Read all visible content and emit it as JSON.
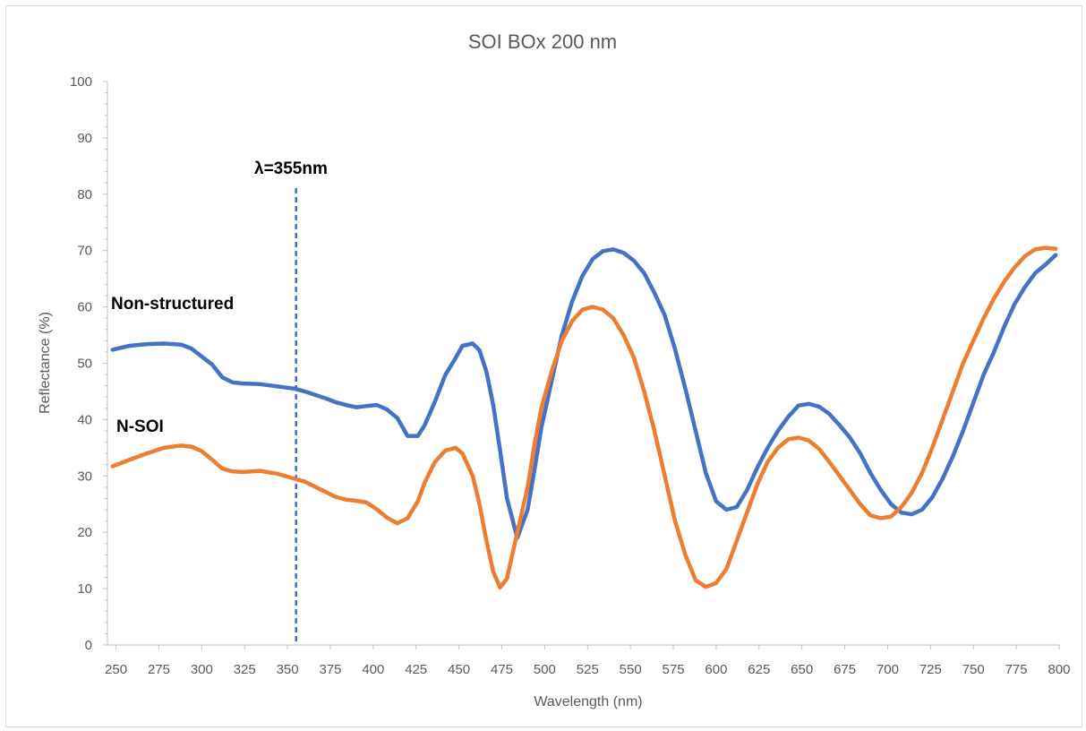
{
  "chart_data": {
    "type": "line",
    "title": "SOI BOx 200 nm",
    "xlabel": "Wavelength (nm)",
    "ylabel": "Reflectance (%)",
    "xlim": [
      245,
      800
    ],
    "ylim": [
      0,
      100
    ],
    "x_ticks": [
      "250",
      "275",
      "300",
      "325",
      "350",
      "375",
      "400",
      "425",
      "450",
      "475",
      "500",
      "525",
      "550",
      "575",
      "600",
      "625",
      "650",
      "675",
      "700",
      "725",
      "750",
      "775",
      "800"
    ],
    "y_ticks": [
      "0",
      "10",
      "20",
      "30",
      "40",
      "50",
      "60",
      "70",
      "80",
      "90",
      "100"
    ],
    "grid": false,
    "series": [
      {
        "name": "Non-structured",
        "color": "#4472c4",
        "x": [
          248,
          258,
          268,
          278,
          288,
          294,
          300,
          306,
          312,
          318,
          324,
          334,
          344,
          354,
          360,
          366,
          372,
          378,
          384,
          390,
          396,
          402,
          408,
          414,
          420,
          426,
          430,
          436,
          442,
          448,
          452,
          458,
          462,
          466,
          470,
          474,
          478,
          484,
          490,
          494,
          498,
          504,
          510,
          516,
          522,
          528,
          534,
          540,
          546,
          552,
          558,
          564,
          570,
          576,
          582,
          588,
          594,
          600,
          606,
          612,
          618,
          624,
          630,
          636,
          642,
          648,
          654,
          660,
          666,
          672,
          678,
          684,
          690,
          696,
          702,
          708,
          714,
          720,
          726,
          732,
          738,
          744,
          750,
          756,
          762,
          768,
          774,
          780,
          786,
          792,
          798
        ],
        "values": [
          52.4,
          53.1,
          53.4,
          53.5,
          53.3,
          52.6,
          51.2,
          49.8,
          47.5,
          46.6,
          46.4,
          46.3,
          45.9,
          45.5,
          45.0,
          44.4,
          43.8,
          43.1,
          42.6,
          42.2,
          42.4,
          42.6,
          41.8,
          40.3,
          37.1,
          37.1,
          39.0,
          43.2,
          47.9,
          50.9,
          53.1,
          53.5,
          52.3,
          48.5,
          42.6,
          34.5,
          26.0,
          19.0,
          24.0,
          31.0,
          38.5,
          46.8,
          55.0,
          61.0,
          65.5,
          68.5,
          69.9,
          70.2,
          69.6,
          68.2,
          66.0,
          62.5,
          58.5,
          52.5,
          45.5,
          38.0,
          30.5,
          25.5,
          24.0,
          24.5,
          27.5,
          31.5,
          35.0,
          38.0,
          40.5,
          42.5,
          42.8,
          42.3,
          41.0,
          39.0,
          36.8,
          34.0,
          30.5,
          27.5,
          25.0,
          23.5,
          23.2,
          24.0,
          26.2,
          29.5,
          33.5,
          38.0,
          43.0,
          48.0,
          52.0,
          56.5,
          60.5,
          63.5,
          66.0,
          67.5,
          69.2
        ]
      },
      {
        "name": "N-SOI",
        "color": "#ed7d31",
        "x": [
          248,
          258,
          268,
          278,
          288,
          294,
          300,
          306,
          312,
          318,
          324,
          334,
          344,
          354,
          360,
          366,
          372,
          378,
          384,
          390,
          396,
          402,
          408,
          414,
          420,
          426,
          430,
          436,
          442,
          448,
          452,
          458,
          462,
          466,
          470,
          474,
          478,
          484,
          490,
          494,
          498,
          504,
          510,
          516,
          522,
          528,
          534,
          540,
          546,
          552,
          558,
          564,
          570,
          576,
          582,
          588,
          594,
          600,
          606,
          612,
          618,
          624,
          630,
          636,
          642,
          648,
          654,
          660,
          666,
          672,
          678,
          684,
          690,
          696,
          702,
          708,
          714,
          720,
          726,
          732,
          738,
          744,
          750,
          756,
          762,
          768,
          774,
          780,
          786,
          792,
          798
        ],
        "values": [
          31.7,
          32.9,
          34.0,
          35.0,
          35.4,
          35.2,
          34.4,
          32.9,
          31.3,
          30.8,
          30.7,
          30.9,
          30.4,
          29.5,
          29.0,
          28.1,
          27.2,
          26.3,
          25.8,
          25.6,
          25.3,
          24.1,
          22.6,
          21.6,
          22.5,
          25.5,
          28.8,
          32.5,
          34.5,
          35.0,
          34.0,
          30.0,
          25.0,
          18.5,
          13.0,
          10.2,
          11.8,
          20.0,
          28.0,
          35.5,
          42.0,
          48.5,
          54.0,
          57.5,
          59.5,
          60.0,
          59.5,
          58.0,
          55.0,
          51.0,
          45.0,
          38.0,
          30.0,
          22.0,
          16.0,
          11.5,
          10.3,
          11.0,
          13.5,
          18.5,
          23.5,
          28.5,
          32.5,
          35.0,
          36.5,
          36.8,
          36.3,
          34.8,
          32.5,
          30.0,
          27.5,
          25.0,
          23.0,
          22.5,
          22.8,
          24.5,
          27.0,
          30.5,
          35.0,
          40.0,
          45.0,
          50.0,
          54.0,
          58.0,
          61.5,
          64.5,
          67.0,
          69.0,
          70.2,
          70.5,
          70.3
        ]
      }
    ],
    "annotations": [
      {
        "text": "λ=355nm",
        "x": 355,
        "line": "vertical dashed",
        "color": "#4472c4"
      },
      {
        "text": "Non-structured",
        "series": "Non-structured"
      },
      {
        "text": "N-SOI",
        "series": "N-SOI"
      }
    ]
  }
}
